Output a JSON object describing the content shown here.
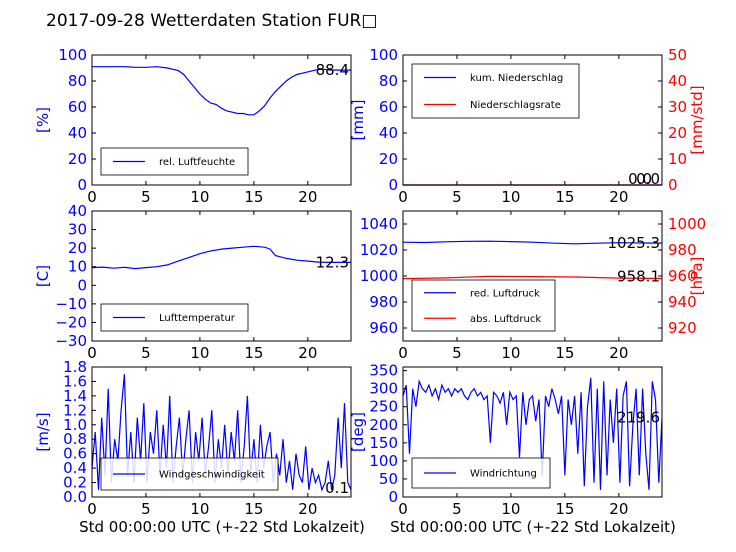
{
  "figure": {
    "title": "2017-09-28 Wetterdaten Station FUR□",
    "xlabel": "Std 00:00:00 UTC (+-22 Std Lokalzeit)",
    "colors": {
      "primary": "#0000ff",
      "secondary": "#ff0000",
      "axis": "#000000"
    }
  },
  "chart_data": [
    {
      "id": "humidity",
      "type": "line",
      "ylabel": "[%]",
      "xlim": [
        0,
        24
      ],
      "ylim": [
        0,
        100
      ],
      "xticks": [
        "0",
        "5",
        "10",
        "15",
        "20"
      ],
      "yticks": [
        "0",
        "20",
        "40",
        "60",
        "80",
        "100"
      ],
      "value_label": "88.4",
      "legend": {
        "placement": "lower-left",
        "entries": [
          {
            "label": "rel. Luftfeuchte",
            "color": "#0000ff"
          }
        ]
      },
      "series": [
        {
          "name": "rel. Luftfeuchte",
          "axis": "left",
          "color": "#0000ff",
          "x": [
            0,
            1,
            2,
            3,
            4,
            5,
            6,
            7,
            7.5,
            8,
            8.5,
            9,
            9.5,
            10,
            10.5,
            11,
            11.5,
            12,
            12.5,
            13,
            13.5,
            14,
            14.5,
            15,
            15.5,
            16,
            16.5,
            17,
            17.5,
            18,
            18.5,
            19,
            19.5,
            20,
            20.5,
            21,
            21.5,
            22,
            22.5,
            23,
            23.5,
            24
          ],
          "y": [
            91,
            91,
            91,
            91,
            90.5,
            90.5,
            91,
            90,
            89,
            88,
            85,
            80,
            75,
            70,
            66,
            63,
            62,
            59,
            57,
            56,
            55,
            55,
            54,
            54,
            57,
            61,
            67,
            72,
            76,
            80,
            83,
            85,
            86,
            87,
            88,
            89,
            89,
            88.5,
            88.5,
            88.4,
            88.4,
            88.4
          ]
        }
      ]
    },
    {
      "id": "precipitation",
      "type": "line",
      "ylabel": "[mm]",
      "y2label": "[mm/std]",
      "xlim": [
        0,
        24
      ],
      "ylim": [
        0,
        100
      ],
      "y2lim": [
        0,
        50
      ],
      "xticks": [
        "0",
        "5",
        "10",
        "15",
        "20"
      ],
      "yticks": [
        "0",
        "20",
        "40",
        "60",
        "80",
        "100"
      ],
      "y2ticks": [
        "0",
        "10",
        "20",
        "30",
        "40",
        "50"
      ],
      "value_label": "0.0",
      "value_label_2": "0.0",
      "legend": {
        "placement": "upper-left",
        "entries": [
          {
            "label": "kum. Niederschlag",
            "color": "#0000ff"
          },
          {
            "label": "Niederschlagsrate",
            "color": "#ff0000"
          }
        ]
      },
      "series": [
        {
          "name": "kum. Niederschlag",
          "axis": "left",
          "color": "#0000ff",
          "x": [
            0,
            24
          ],
          "y": [
            0,
            0
          ]
        },
        {
          "name": "Niederschlagsrate",
          "axis": "right",
          "color": "#ff0000",
          "x": [
            0,
            24
          ],
          "y": [
            0,
            0
          ]
        }
      ]
    },
    {
      "id": "temperature",
      "type": "line",
      "ylabel": "[C]",
      "xlim": [
        0,
        24
      ],
      "ylim": [
        -30,
        40
      ],
      "xticks": [
        "0",
        "5",
        "10",
        "15",
        "20"
      ],
      "yticks": [
        "−30",
        "−20",
        "−10",
        "0",
        "10",
        "20",
        "30",
        "40"
      ],
      "value_label": "12.3",
      "legend": {
        "placement": "lower-left",
        "entries": [
          {
            "label": "Lufttemperatur",
            "color": "#0000ff"
          }
        ]
      },
      "series": [
        {
          "name": "Lufttemperatur",
          "axis": "left",
          "color": "#0000ff",
          "x": [
            0,
            1,
            2,
            3,
            4,
            5,
            6,
            7,
            8,
            9,
            10,
            11,
            12,
            13,
            14,
            15,
            16,
            16.5,
            17,
            18,
            19,
            20,
            21,
            22,
            23,
            24
          ],
          "y": [
            9.5,
            9.8,
            9.2,
            9.7,
            9,
            9.5,
            10,
            11,
            13,
            15,
            17,
            18.5,
            19.5,
            20,
            20.5,
            21,
            20.5,
            19.5,
            16,
            14.5,
            13.5,
            13,
            12.5,
            12.3,
            12.3,
            12.3
          ]
        }
      ]
    },
    {
      "id": "pressure",
      "type": "line",
      "y2label": "[hPa]",
      "xlim": [
        0,
        24
      ],
      "ylim": [
        950,
        1050
      ],
      "y2lim": [
        910,
        1010
      ],
      "xticks": [
        "0",
        "5",
        "10",
        "15",
        "20"
      ],
      "yticks": [
        "960",
        "980",
        "1000",
        "1020",
        "1040"
      ],
      "y2ticks": [
        "920",
        "940",
        "960",
        "980",
        "1000"
      ],
      "value_label": "1025.3",
      "value_label_2": "958.1",
      "legend": {
        "placement": "lower-left",
        "entries": [
          {
            "label": "red. Luftdruck",
            "color": "#0000ff"
          },
          {
            "label": "abs. Luftdruck",
            "color": "#ff0000"
          }
        ]
      },
      "series": [
        {
          "name": "red. Luftdruck",
          "axis": "left",
          "color": "#0000ff",
          "x": [
            0,
            2,
            4,
            6,
            8,
            10,
            12,
            14,
            16,
            18,
            20,
            22,
            24
          ],
          "y": [
            1026,
            1025.8,
            1026.3,
            1026.7,
            1026.8,
            1026.5,
            1026,
            1025.2,
            1024.8,
            1025.2,
            1025.6,
            1025.4,
            1025.3
          ]
        }
      ]
    },
    {
      "id": "wind_speed",
      "type": "line",
      "ylabel": "[m/s]",
      "xlim": [
        0,
        24
      ],
      "ylim": [
        0,
        1.8
      ],
      "xticks": [
        "0",
        "5",
        "10",
        "15",
        "20"
      ],
      "yticks": [
        "0.0",
        "0.2",
        "0.4",
        "0.6",
        "0.8",
        "1.0",
        "1.2",
        "1.4",
        "1.6",
        "1.8"
      ],
      "value_label": "0.1",
      "legend": {
        "placement": "lower-left",
        "entries": [
          {
            "label": "Windgeschwindigkeit",
            "color": "#0000ff"
          }
        ]
      },
      "series": [
        {
          "name": "Windgeschwindigkeit",
          "axis": "left",
          "color": "#0000ff",
          "x": [
            0,
            0.3,
            0.6,
            0.9,
            1.2,
            1.5,
            1.8,
            2.1,
            2.4,
            2.7,
            3,
            3.3,
            3.6,
            3.9,
            4.2,
            4.5,
            4.8,
            5.1,
            5.4,
            5.7,
            6,
            6.3,
            6.6,
            6.9,
            7.2,
            7.5,
            7.8,
            8.1,
            8.4,
            8.7,
            9,
            9.3,
            9.6,
            9.9,
            10.2,
            10.5,
            10.8,
            11.1,
            11.4,
            11.7,
            12,
            12.3,
            12.6,
            12.9,
            13.2,
            13.5,
            13.8,
            14.1,
            14.4,
            14.7,
            15,
            15.3,
            15.6,
            15.9,
            16.2,
            16.5,
            16.8,
            17.1,
            17.4,
            17.7,
            18,
            18.3,
            18.6,
            18.9,
            19.2,
            19.5,
            19.8,
            20.1,
            20.4,
            20.7,
            21,
            21.3,
            21.6,
            21.9,
            22.2,
            22.5,
            22.8,
            23.1,
            23.4,
            23.7,
            24
          ],
          "y": [
            0.4,
            0.9,
            0.1,
            1.1,
            0.3,
            1.5,
            0.2,
            0.8,
            0.5,
            1.2,
            1.7,
            0.3,
            0.9,
            0.2,
            1.1,
            0.5,
            1.3,
            0.2,
            0.9,
            0.6,
            1.2,
            0.3,
            1,
            0.4,
            1.4,
            0.2,
            0.7,
            1.1,
            0.3,
            0.8,
            1.2,
            0.2,
            0.9,
            0.5,
            1.1,
            0.3,
            0.7,
            1.2,
            0.2,
            0.8,
            0.4,
            1,
            0.3,
            0.9,
            0.5,
            1.2,
            0.2,
            0.7,
            1.4,
            0.3,
            0.8,
            0.2,
            1,
            0.4,
            0.7,
            0.9,
            0.2,
            0.6,
            0.3,
            0.8,
            0.2,
            0.5,
            0.1,
            0.6,
            0.3,
            0.2,
            0.7,
            0.1,
            0.4,
            0.2,
            0.3,
            0.1,
            0.2,
            0.5,
            0.1,
            0.3,
            1.1,
            0.4,
            1.3,
            0.2,
            0.1
          ]
        }
      ]
    },
    {
      "id": "wind_direction",
      "type": "line",
      "ylabel": "[deg]",
      "xlim": [
        0,
        24
      ],
      "ylim": [
        0,
        360
      ],
      "xticks": [
        "0",
        "5",
        "10",
        "15",
        "20"
      ],
      "yticks": [
        "0",
        "50",
        "100",
        "150",
        "200",
        "250",
        "300",
        "350"
      ],
      "value_label": "219.6",
      "legend": {
        "placement": "lower-left",
        "entries": [
          {
            "label": "Windrichtung",
            "color": "#0000ff"
          }
        ]
      },
      "series": [
        {
          "name": "Windrichtung",
          "axis": "left",
          "color": "#0000ff",
          "x": [
            0,
            0.3,
            0.6,
            0.9,
            1.2,
            1.5,
            1.8,
            2.1,
            2.4,
            2.7,
            3,
            3.3,
            3.6,
            3.9,
            4.2,
            4.5,
            4.8,
            5.1,
            5.4,
            5.7,
            6,
            6.3,
            6.6,
            6.9,
            7.2,
            7.5,
            7.8,
            8.1,
            8.4,
            8.7,
            9,
            9.3,
            9.6,
            9.9,
            10.2,
            10.5,
            10.8,
            11.1,
            11.4,
            11.7,
            12,
            12.3,
            12.6,
            12.9,
            13.2,
            13.5,
            13.8,
            14.1,
            14.4,
            14.7,
            15,
            15.3,
            15.6,
            15.9,
            16.2,
            16.5,
            16.8,
            17.1,
            17.4,
            17.7,
            18,
            18.3,
            18.6,
            18.9,
            19.2,
            19.5,
            19.8,
            20.1,
            20.4,
            20.7,
            21,
            21.3,
            21.6,
            21.9,
            22.2,
            22.5,
            22.8,
            23.1,
            23.4,
            23.7,
            24
          ],
          "y": [
            280,
            310,
            120,
            300,
            250,
            320,
            300,
            290,
            310,
            280,
            300,
            270,
            310,
            290,
            300,
            280,
            300,
            290,
            300,
            280,
            270,
            290,
            300,
            280,
            290,
            270,
            280,
            150,
            290,
            280,
            260,
            290,
            200,
            290,
            270,
            280,
            110,
            290,
            200,
            270,
            280,
            210,
            270,
            60,
            280,
            250,
            300,
            270,
            230,
            280,
            60,
            270,
            200,
            280,
            120,
            290,
            30,
            250,
            330,
            40,
            300,
            20,
            320,
            60,
            270,
            150,
            300,
            40,
            280,
            320,
            30,
            200,
            300,
            60,
            300,
            120,
            20,
            320,
            270,
            40,
            220
          ]
        }
      ]
    }
  ]
}
